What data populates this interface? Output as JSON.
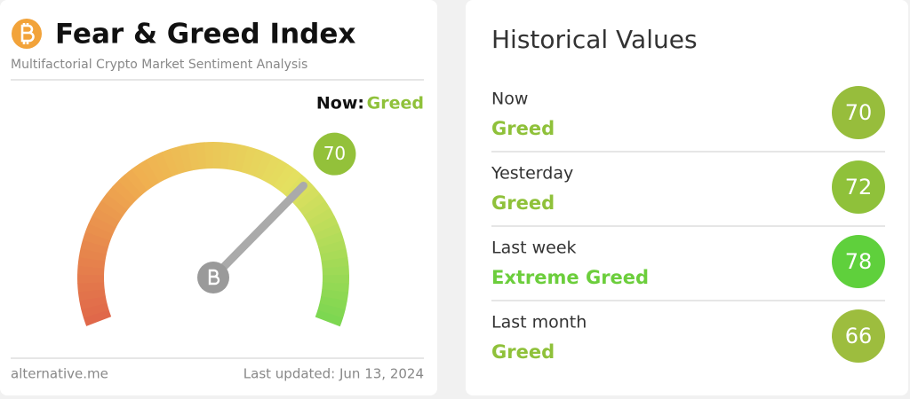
{
  "header": {
    "title": "Fear & Greed Index",
    "subtitle": "Multifactorial Crypto Market Sentiment Analysis"
  },
  "now": {
    "label": "Now:",
    "classification": "Greed",
    "color": "#8fc13a"
  },
  "gauge": {
    "value": 70,
    "range": [
      0,
      100
    ],
    "color": "#93c13a"
  },
  "footer": {
    "source": "alternative.me",
    "updated": "Last updated: Jun 13, 2024"
  },
  "historical": {
    "title": "Historical Values",
    "rows": [
      {
        "label": "Now",
        "classification": "Greed",
        "value": 70,
        "color": "#97bd3c",
        "text_color": "#8fc13a"
      },
      {
        "label": "Yesterday",
        "classification": "Greed",
        "value": 72,
        "color": "#8fc13a",
        "text_color": "#8fc13a"
      },
      {
        "label": "Last week",
        "classification": "Extreme Greed",
        "value": 78,
        "color": "#5fd03c",
        "text_color": "#6cce3c"
      },
      {
        "label": "Last month",
        "classification": "Greed",
        "value": 66,
        "color": "#9dbd3e",
        "text_color": "#8fc13a"
      }
    ]
  }
}
